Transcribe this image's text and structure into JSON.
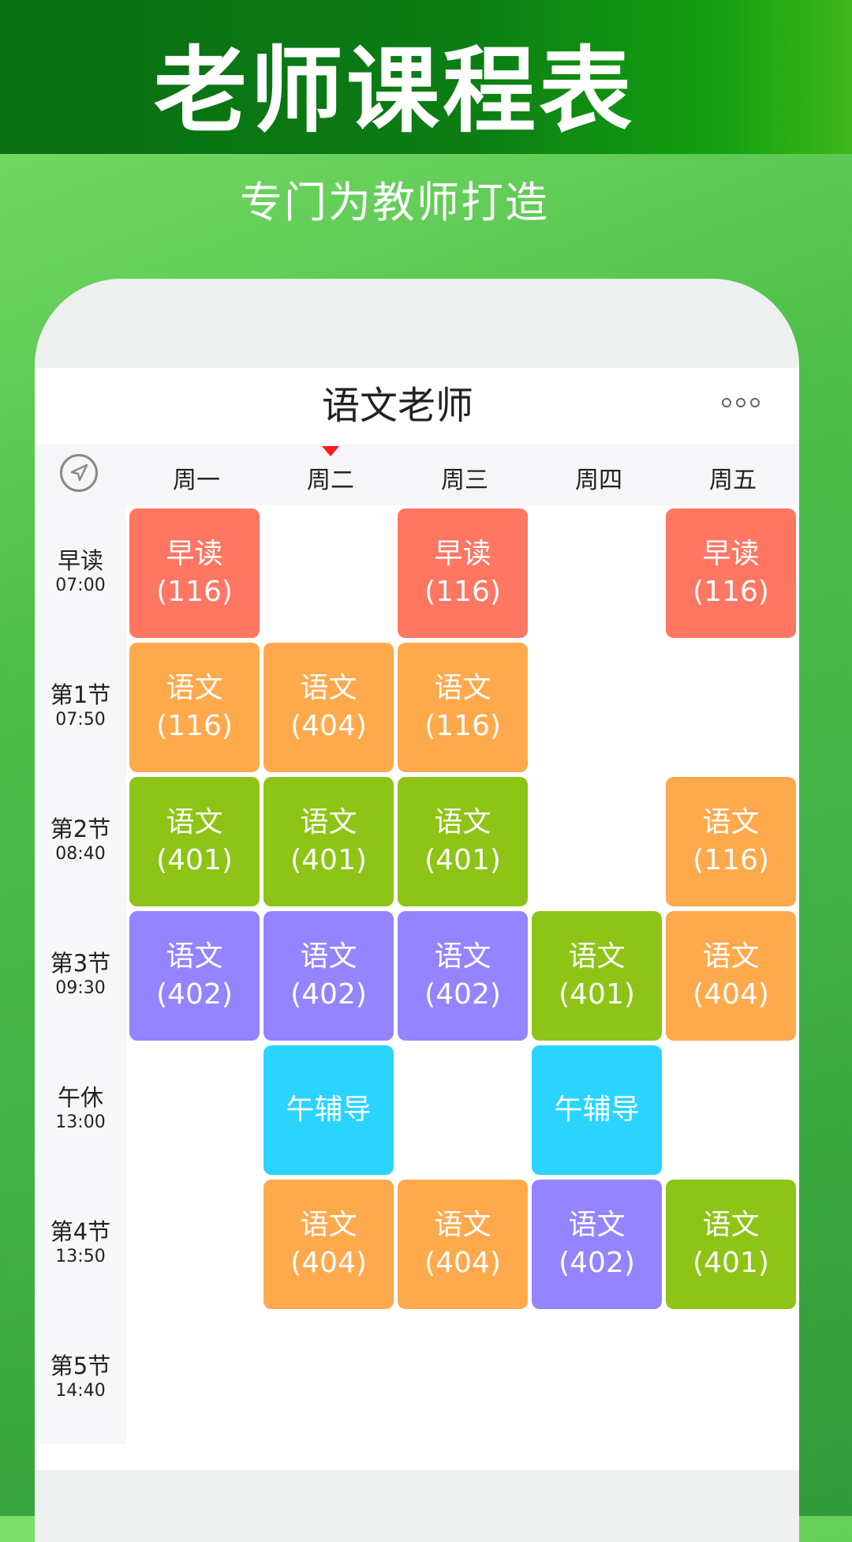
{
  "banner": {
    "title": "老师课程表",
    "subtitle": "专门为教师打造"
  },
  "app": {
    "title": "语文老师",
    "more_icon": "more-dots-icon",
    "nav_icon": "location-arrow-icon"
  },
  "days": [
    "周一",
    "周二",
    "周三",
    "周四",
    "周五"
  ],
  "current_day_index": 1,
  "colors": {
    "red": "#FF7662",
    "orange": "#FFA94D",
    "green": "#8DC415",
    "purple": "#9584FF",
    "cyan": "#2AD4FF",
    "marker": "#FF1A1A"
  },
  "periods": [
    {
      "name": "早读",
      "time": "07:00"
    },
    {
      "name": "第1节",
      "time": "07:50"
    },
    {
      "name": "第2节",
      "time": "08:40"
    },
    {
      "name": "第3节",
      "time": "09:30"
    },
    {
      "name": "午休",
      "time": "13:00"
    },
    {
      "name": "第4节",
      "time": "13:50"
    },
    {
      "name": "第5节",
      "time": "14:40"
    }
  ],
  "schedule": [
    [
      {
        "subject": "早读",
        "room": "(116)",
        "color": "red"
      },
      null,
      {
        "subject": "早读",
        "room": "(116)",
        "color": "red"
      },
      null,
      {
        "subject": "早读",
        "room": "(116)",
        "color": "red"
      }
    ],
    [
      {
        "subject": "语文",
        "room": "(116)",
        "color": "orange"
      },
      {
        "subject": "语文",
        "room": "(404)",
        "color": "orange"
      },
      {
        "subject": "语文",
        "room": "(116)",
        "color": "orange"
      },
      null,
      null
    ],
    [
      {
        "subject": "语文",
        "room": "(401)",
        "color": "green"
      },
      {
        "subject": "语文",
        "room": "(401)",
        "color": "green"
      },
      {
        "subject": "语文",
        "room": "(401)",
        "color": "green"
      },
      null,
      {
        "subject": "语文",
        "room": "(116)",
        "color": "orange"
      }
    ],
    [
      {
        "subject": "语文",
        "room": "(402)",
        "color": "purple"
      },
      {
        "subject": "语文",
        "room": "(402)",
        "color": "purple"
      },
      {
        "subject": "语文",
        "room": "(402)",
        "color": "purple"
      },
      {
        "subject": "语文",
        "room": "(401)",
        "color": "green"
      },
      {
        "subject": "语文",
        "room": "(404)",
        "color": "orange"
      }
    ],
    [
      null,
      {
        "subject": "午辅导",
        "room": "",
        "color": "cyan"
      },
      null,
      {
        "subject": "午辅导",
        "room": "",
        "color": "cyan"
      },
      null
    ],
    [
      null,
      {
        "subject": "语文",
        "room": "(404)",
        "color": "orange"
      },
      {
        "subject": "语文",
        "room": "(404)",
        "color": "orange"
      },
      {
        "subject": "语文",
        "room": "(402)",
        "color": "purple"
      },
      {
        "subject": "语文",
        "room": "(401)",
        "color": "green"
      }
    ],
    [
      null,
      null,
      null,
      null,
      null
    ]
  ]
}
